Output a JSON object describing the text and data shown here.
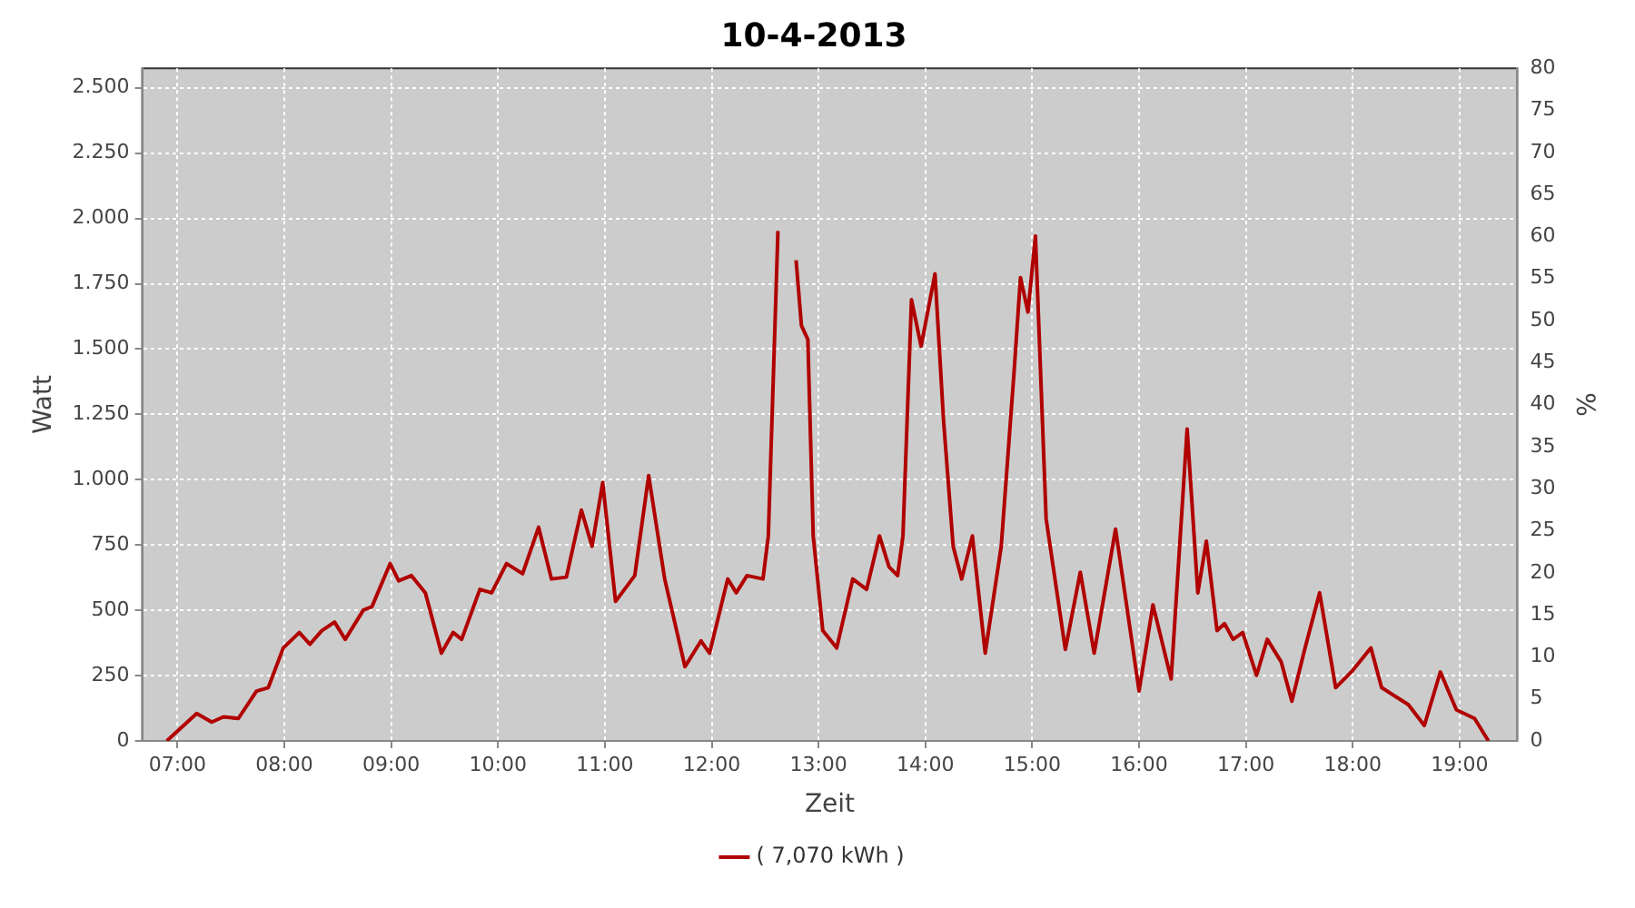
{
  "chart_data": {
    "type": "line",
    "title": "10-4-2013",
    "xlabel": "Zeit",
    "ylabel": "Watt",
    "y2label": "%",
    "x": [
      6.9,
      7.18,
      7.32,
      7.43,
      7.57,
      7.74,
      7.85,
      7.99,
      8.14,
      8.24,
      8.35,
      8.47,
      8.57,
      8.74,
      8.82,
      8.99,
      9.07,
      9.19,
      9.32,
      9.47,
      9.58,
      9.66,
      9.83,
      9.94,
      10.08,
      10.23,
      10.38,
      10.5,
      10.64,
      10.78,
      10.88,
      10.98,
      11.1,
      11.28,
      11.41,
      11.56,
      11.75,
      11.9,
      11.98,
      12.15,
      12.23,
      12.33,
      12.48,
      12.53,
      12.62,
      12.65,
      12.7,
      12.79,
      12.84,
      12.9,
      12.95,
      13.04,
      13.17,
      13.32,
      13.45,
      13.57,
      13.66,
      13.74,
      13.79,
      13.87,
      13.96,
      14.09,
      14.17,
      14.26,
      14.34,
      14.44,
      14.56,
      14.71,
      14.83,
      14.89,
      14.96,
      15.03,
      15.13,
      15.31,
      15.45,
      15.58,
      15.78,
      16.0,
      16.13,
      16.3,
      16.45,
      16.55,
      16.63,
      16.73,
      16.8,
      16.88,
      16.97,
      17.1,
      17.2,
      17.33,
      17.43,
      17.55,
      17.69,
      17.84,
      18.0,
      18.17,
      18.27,
      18.52,
      18.67,
      18.82,
      18.97,
      19.14,
      19.27
    ],
    "series": [
      {
        "name": "( 7,070 kWh )",
        "color": "#b00000",
        "values": [
          0,
          105,
          72,
          92,
          86,
          191,
          204,
          356,
          415,
          370,
          422,
          455,
          389,
          501,
          514,
          679,
          613,
          633,
          567,
          336,
          415,
          389,
          580,
          567,
          679,
          640,
          818,
          620,
          627,
          884,
          745,
          989,
          534,
          633,
          1016,
          620,
          284,
          383,
          336,
          620,
          567,
          633,
          620,
          785,
          1952,
          null,
          null,
          1840,
          1590,
          1537,
          785,
          422,
          356,
          620,
          580,
          785,
          666,
          633,
          785,
          1689,
          1511,
          1788,
          1227,
          745,
          620,
          785,
          336,
          745,
          1412,
          1774,
          1642,
          1933,
          851,
          350,
          646,
          336,
          811,
          191,
          521,
          237,
          1194,
          567,
          765,
          422,
          449,
          389,
          415,
          251,
          389,
          303,
          152,
          350,
          567,
          204,
          270,
          356,
          204,
          139,
          59,
          264,
          119,
          86,
          0
        ]
      }
    ],
    "xlim": [
      6.67,
      19.54
    ],
    "xticks": [
      {
        "value": 7,
        "label": "07:00"
      },
      {
        "value": 8,
        "label": "08:00"
      },
      {
        "value": 9,
        "label": "09:00"
      },
      {
        "value": 10,
        "label": "10:00"
      },
      {
        "value": 11,
        "label": "11:00"
      },
      {
        "value": 12,
        "label": "12:00"
      },
      {
        "value": 13,
        "label": "13:00"
      },
      {
        "value": 14,
        "label": "14:00"
      },
      {
        "value": 15,
        "label": "15:00"
      },
      {
        "value": 16,
        "label": "16:00"
      },
      {
        "value": 17,
        "label": "17:00"
      },
      {
        "value": 18,
        "label": "18:00"
      },
      {
        "value": 19,
        "label": "19:00"
      }
    ],
    "ylim": [
      0,
      2575
    ],
    "yticks": [
      0,
      250,
      500,
      750,
      {
        "value": 1000,
        "label": "1.000"
      },
      {
        "value": 1250,
        "label": "1.250"
      },
      {
        "value": 1500,
        "label": "1.500"
      },
      {
        "value": 1750,
        "label": "1.750"
      },
      {
        "value": 2000,
        "label": "2.000"
      },
      {
        "value": 2250,
        "label": "2.250"
      },
      {
        "value": 2500,
        "label": "2.500"
      }
    ],
    "y2lim": [
      0,
      80
    ],
    "y2ticks": [
      0,
      5,
      10,
      15,
      20,
      25,
      30,
      35,
      40,
      45,
      50,
      55,
      60,
      65,
      70,
      75,
      80
    ],
    "grid": true,
    "legend": "bottom",
    "marker": "none",
    "line_style": "solid"
  }
}
